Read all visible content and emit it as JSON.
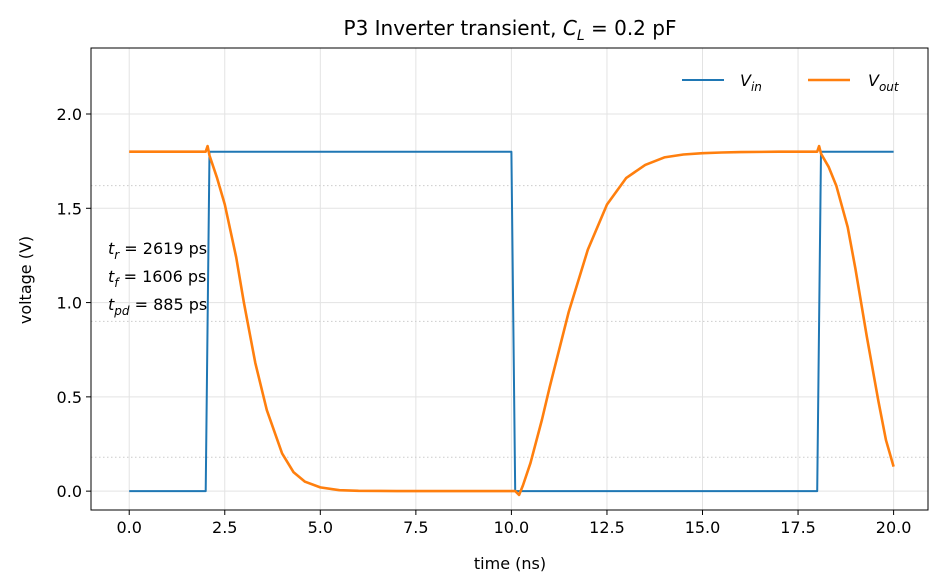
{
  "chart_data": {
    "type": "line",
    "title": "P3  Inverter transient, C_L = 0.2 pF",
    "title_parts": {
      "prefix": "P3  Inverter transient, ",
      "var": "C",
      "sub": "L",
      "suffix": " = 0.2 pF"
    },
    "xlabel": "time (ns)",
    "ylabel": "voltage (V)",
    "xlim": [
      -1.0,
      20.9
    ],
    "ylim": [
      -0.1,
      2.35
    ],
    "xticks": [
      0.0,
      2.5,
      5.0,
      7.5,
      10.0,
      12.5,
      15.0,
      17.5,
      20.0
    ],
    "xtick_labels": [
      "0.0",
      "2.5",
      "5.0",
      "7.5",
      "10.0",
      "12.5",
      "15.0",
      "17.5",
      "20.0"
    ],
    "yticks": [
      0.0,
      0.5,
      1.0,
      1.5,
      2.0
    ],
    "ytick_labels": [
      "0.0",
      "0.5",
      "1.0",
      "1.5",
      "2.0"
    ],
    "grid": true,
    "reference_levels": [
      0.18,
      0.9,
      1.62
    ],
    "legend_position": "top-right",
    "series": [
      {
        "name": "V_in",
        "label_main": "V",
        "label_sub": "in",
        "color": "#1f77b4",
        "x": [
          0.0,
          2.0,
          2.1,
          10.0,
          10.1,
          18.0,
          18.1,
          20.0
        ],
        "y": [
          0.0,
          0.0,
          1.8,
          1.8,
          0.0,
          0.0,
          1.8,
          1.8
        ]
      },
      {
        "name": "V_out",
        "label_main": "V",
        "label_sub": "out",
        "color": "#ff7f0e",
        "x": [
          0.0,
          2.0,
          2.05,
          2.1,
          2.3,
          2.5,
          2.8,
          3.0,
          3.3,
          3.6,
          4.0,
          4.3,
          4.6,
          5.0,
          5.5,
          6.0,
          7.0,
          8.0,
          10.0,
          10.1,
          10.2,
          10.3,
          10.5,
          10.8,
          11.0,
          11.5,
          12.0,
          12.5,
          13.0,
          13.5,
          14.0,
          14.5,
          15.0,
          15.5,
          16.0,
          17.0,
          18.0,
          18.05,
          18.1,
          18.3,
          18.5,
          18.8,
          19.0,
          19.3,
          19.6,
          19.8,
          20.0
        ],
        "y": [
          1.8,
          1.8,
          1.83,
          1.78,
          1.66,
          1.52,
          1.24,
          1.0,
          0.68,
          0.43,
          0.2,
          0.1,
          0.05,
          0.02,
          0.005,
          0.002,
          0.0,
          0.0,
          0.0,
          0.0,
          -0.02,
          0.03,
          0.15,
          0.38,
          0.55,
          0.95,
          1.28,
          1.52,
          1.66,
          1.73,
          1.77,
          1.785,
          1.792,
          1.796,
          1.798,
          1.8,
          1.8,
          1.83,
          1.79,
          1.72,
          1.62,
          1.4,
          1.18,
          0.82,
          0.48,
          0.27,
          0.13
        ]
      }
    ],
    "annotations": [
      {
        "var": "t",
        "sub": "r",
        "text": " = 2619 ps"
      },
      {
        "var": "t",
        "sub": "f",
        "text": " = 1606 ps"
      },
      {
        "var": "t",
        "sub": "pd",
        "text": " = 885 ps"
      }
    ]
  }
}
